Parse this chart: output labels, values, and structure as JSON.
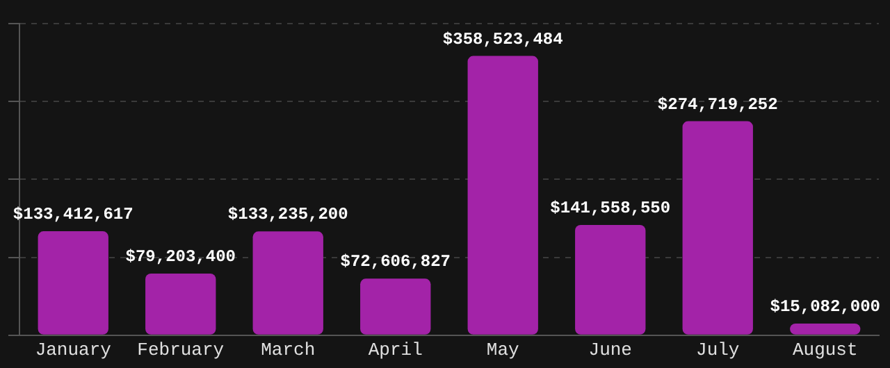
{
  "chart_data": {
    "type": "bar",
    "categories": [
      "January",
      "February",
      "March",
      "April",
      "May",
      "June",
      "July",
      "August"
    ],
    "values": [
      133412617,
      79203400,
      133235200,
      72606827,
      358523484,
      141558550,
      274719252,
      15082000
    ],
    "value_labels": [
      "$133,412,617",
      "$79,203,400",
      "$133,235,200",
      "$72,606,827",
      "$358,523,484",
      "$141,558,550",
      "$274,719,252",
      "$15,082,000"
    ],
    "color": "#a323a8",
    "ylim": [
      0,
      400000000
    ],
    "yticks": [
      {
        "value": 0,
        "label": null
      },
      {
        "value": 100000000,
        "label": null
      },
      {
        "value": 200000000,
        "label": null
      },
      {
        "value": 300000000,
        "label": null
      },
      {
        "value": 400000000,
        "label": null
      }
    ],
    "grid": "y",
    "legend": false,
    "tick_labels": "x"
  }
}
